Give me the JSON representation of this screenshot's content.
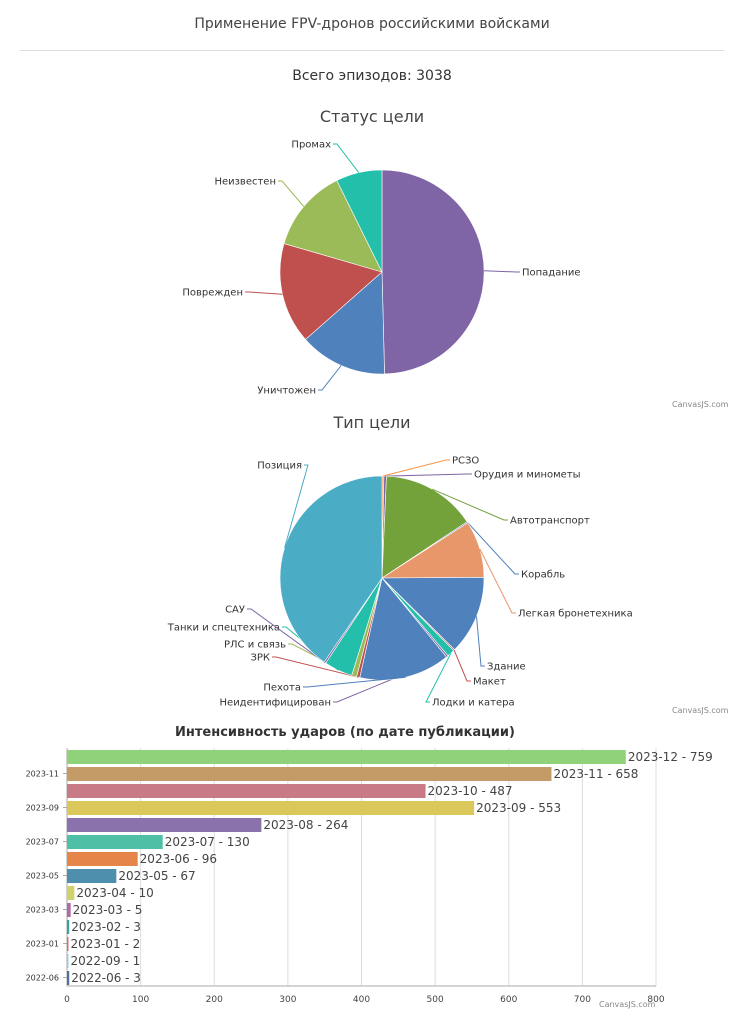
{
  "page": {
    "title": "Применение FPV-дронов российскими войсками",
    "total": "Всего эпизодов: 3038",
    "credit": "CanvasJS.com"
  },
  "chart_data": [
    {
      "type": "pie",
      "title": "Статус цели",
      "labels": [
        "Попадание",
        "Уничтожен",
        "Поврежден",
        "Неизвестен",
        "Промах"
      ],
      "values": [
        49.6,
        13.9,
        16.0,
        13.2,
        7.3
      ],
      "colors": [
        "#7f64a6",
        "#4f81bd",
        "#c0504d",
        "#9bbb59",
        "#23bfaa"
      ]
    },
    {
      "type": "pie",
      "title": "Тип цели",
      "labels": [
        "РСЗО",
        "Орудия и минометы",
        "Автотранспорт",
        "Корабль",
        "Легкая бронетехника",
        "Здание",
        "Макет",
        "Лодки и катера",
        "Неидентифицирован",
        "Пехота",
        "ЗРК",
        "РЛС и связь",
        "Танки и спецтехника",
        "САУ",
        "Позиция"
      ],
      "values": [
        0.3,
        0.4,
        15.0,
        0.2,
        9.0,
        12.5,
        0.2,
        1.2,
        0.3,
        14.4,
        0.5,
        0.8,
        4.5,
        0.3,
        40.4
      ],
      "colors": [
        "#f79647",
        "#7f64a6",
        "#73a13a",
        "#4f81bd",
        "#e8976a",
        "#4f81bd",
        "#c0504d",
        "#23bfaa",
        "#8064a2",
        "#4f81bd",
        "#c0504d",
        "#9bbb59",
        "#23bfaa",
        "#7f64a6",
        "#4aacc5"
      ]
    },
    {
      "type": "bar",
      "orientation": "horizontal",
      "title": "Интенсивность ударов (по дате публикации)",
      "categories": [
        "2022-06",
        "2022-09",
        "2023-01",
        "2023-02",
        "2023-03",
        "2023-04",
        "2023-05",
        "2023-06",
        "2023-07",
        "2023-08",
        "2023-09",
        "2023-10",
        "2023-11",
        "2023-12"
      ],
      "values": [
        3,
        1,
        2,
        3,
        5,
        10,
        67,
        96,
        130,
        264,
        553,
        487,
        658,
        759
      ],
      "bar_labels": [
        "2022-06 - 3",
        "2022-09 - 1",
        "2023-01 - 2",
        "2023-02 - 3",
        "2023-03 - 5",
        "2023-04 - 10",
        "2023-05 - 67",
        "2023-06 - 96",
        "2023-07 - 130",
        "2023-08 - 264",
        "2023-09 - 553",
        "2023-10 - 487",
        "2023-11 - 658",
        "2023-12 - 759"
      ],
      "axis_tick_labels": [
        "2022-06",
        "",
        "2023-01",
        "",
        "2023-03",
        "",
        "2023-05",
        "",
        "2023-07",
        "",
        "2023-09",
        "",
        "2023-11",
        ""
      ],
      "xticks": [
        0,
        100,
        200,
        300,
        400,
        500,
        600,
        700,
        800
      ],
      "xlim": [
        0,
        800
      ],
      "grid": true,
      "colors": [
        "#4f6f9c",
        "#8fd0e6",
        "#e06b6b",
        "#3aa0a0",
        "#b06aa8",
        "#cfd36a",
        "#4f8fae",
        "#e6854a",
        "#4fbfa6",
        "#8a73ac",
        "#dbc85a",
        "#c87a86",
        "#c49a66",
        "#8fd27a"
      ]
    }
  ]
}
